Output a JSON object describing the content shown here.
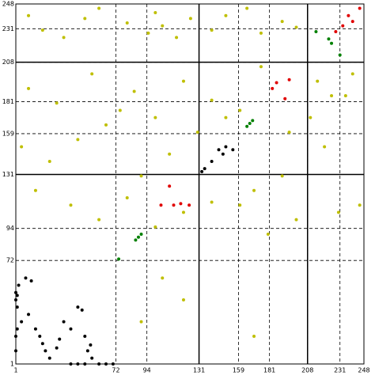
{
  "chart_data": {
    "type": "scatter",
    "xlim": [
      1,
      248
    ],
    "ylim": [
      1,
      248
    ],
    "xticks": [
      1,
      72,
      94,
      131,
      159,
      181,
      208,
      231,
      248
    ],
    "yticks": [
      1,
      72,
      94,
      131,
      159,
      181,
      208,
      231,
      248
    ],
    "grid": true,
    "domain_boundaries": [
      131,
      208
    ],
    "series": [
      {
        "color": "#000000",
        "x": [
          1,
          2,
          1,
          2,
          3,
          8,
          12,
          5,
          10,
          15,
          18,
          20,
          22,
          25,
          30,
          32,
          35,
          40,
          45,
          48,
          50,
          55,
          60,
          65,
          70,
          40,
          45,
          50,
          52,
          54,
          1,
          2,
          1,
          133,
          135,
          140,
          145,
          148,
          150,
          155
        ],
        "y": [
          50,
          48,
          45,
          40,
          55,
          60,
          58,
          30,
          35,
          25,
          20,
          15,
          10,
          5,
          12,
          18,
          30,
          25,
          40,
          38,
          20,
          5,
          1,
          1,
          1,
          1,
          1,
          1,
          10,
          14,
          20,
          25,
          10,
          133,
          135,
          140,
          148,
          145,
          150,
          148
        ]
      },
      {
        "color": "#008000",
        "x": [
          88,
          86,
          90,
          74,
          167,
          165,
          169,
          214,
          231,
          223,
          225
        ],
        "y": [
          88,
          86,
          90,
          73,
          166,
          164,
          168,
          229,
          213,
          224,
          221
        ]
      },
      {
        "color": "#e00000",
        "x": [
          113,
          110,
          118,
          104,
          124,
          186,
          192,
          195,
          183,
          237,
          245,
          228,
          240,
          233
        ],
        "y": [
          110,
          123,
          111,
          110,
          110,
          194,
          183,
          196,
          190,
          240,
          245,
          229,
          236,
          233
        ]
      },
      {
        "color": "#bfbf00",
        "x": [
          10,
          20,
          35,
          50,
          60,
          80,
          95,
          100,
          105,
          115,
          125,
          140,
          150,
          165,
          175,
          190,
          200,
          215,
          225,
          240,
          10,
          30,
          55,
          75,
          85,
          100,
          120,
          140,
          160,
          175,
          195,
          210,
          235,
          5,
          25,
          45,
          65,
          90,
          110,
          130,
          150,
          170,
          190,
          220,
          245,
          15,
          40,
          60,
          80,
          100,
          120,
          140,
          160,
          180,
          200,
          230,
          105,
          120,
          90,
          170
        ],
        "y": [
          240,
          230,
          225,
          238,
          245,
          235,
          228,
          242,
          233,
          225,
          238,
          230,
          240,
          245,
          228,
          236,
          232,
          195,
          185,
          200,
          190,
          180,
          200,
          175,
          188,
          170,
          195,
          182,
          175,
          205,
          160,
          170,
          185,
          150,
          140,
          155,
          165,
          130,
          145,
          160,
          170,
          120,
          130,
          150,
          110,
          120,
          110,
          100,
          115,
          95,
          105,
          112,
          110,
          90,
          100,
          105,
          60,
          45,
          30,
          20
        ]
      }
    ]
  }
}
